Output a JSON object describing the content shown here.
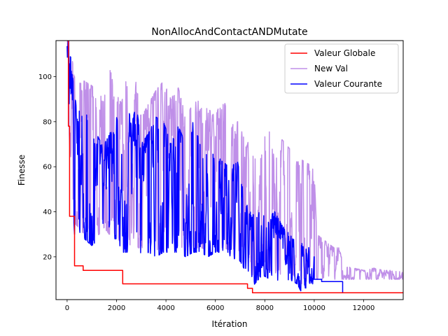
{
  "chart_data": {
    "type": "line",
    "title": "NonAllocAndContactANDMutate",
    "xlabel": "Itération",
    "ylabel": "Finesse",
    "xlim": [
      -450,
      13600
    ],
    "ylim": [
      1,
      116
    ],
    "x_ticks": [
      0,
      2000,
      4000,
      6000,
      8000,
      10000,
      12000
    ],
    "y_ticks": [
      20,
      40,
      60,
      80,
      100
    ],
    "grid": false,
    "legend_position": "top-right",
    "series": [
      {
        "name": "Valeur Globale",
        "color": "#ff0000",
        "style": "step",
        "x": [
          0,
          50,
          50,
          100,
          100,
          300,
          300,
          650,
          650,
          2250,
          2250,
          7300,
          7300,
          7500,
          7500,
          11150,
          11150,
          13600
        ],
        "y": [
          116,
          116,
          78,
          78,
          38,
          38,
          16,
          16,
          14,
          14,
          8,
          8,
          6,
          6,
          4,
          4,
          4,
          4
        ]
      },
      {
        "name": "New Val",
        "color": "#bf8fe8",
        "style": "noisy",
        "x": [
          0,
          100,
          300,
          700,
          1000,
          1300,
          1500,
          1700,
          2000,
          2200,
          2400,
          2600,
          2800,
          3000,
          3300,
          3600,
          3900,
          4200,
          4500,
          4800,
          5100,
          5400,
          5700,
          6000,
          6300,
          6600,
          6900,
          7200,
          7400,
          7600,
          7900,
          8200,
          8400,
          8700,
          9000,
          9300,
          9500,
          9800,
          10000,
          10100,
          10800,
          11000,
          11200,
          11600,
          12000,
          12400,
          12800,
          13200,
          13600
        ],
        "low": [
          100,
          70,
          35,
          30,
          28,
          30,
          33,
          30,
          30,
          25,
          26,
          25,
          24,
          24,
          24,
          23,
          24,
          24,
          24,
          23,
          24,
          24,
          23,
          24,
          24,
          23,
          24,
          16,
          12,
          12,
          16,
          14,
          13,
          12,
          14,
          10,
          8,
          10,
          10,
          10,
          10,
          10,
          10,
          10,
          10,
          10,
          10,
          10,
          10
        ],
        "high": [
          116,
          116,
          100,
          98,
          96,
          92,
          90,
          105,
          92,
          88,
          100,
          92,
          98,
          82,
          88,
          94,
          98,
          90,
          95,
          82,
          88,
          90,
          86,
          82,
          92,
          78,
          80,
          72,
          70,
          66,
          70,
          80,
          68,
          72,
          68,
          62,
          63,
          61,
          58,
          30,
          24,
          24,
          16,
          15,
          14,
          15,
          14,
          14,
          14
        ]
      },
      {
        "name": "Valeur Courante",
        "color": "#0000ff",
        "style": "noisy",
        "x": [
          0,
          100,
          300,
          700,
          1000,
          1300,
          1500,
          1700,
          2000,
          2200,
          2400,
          2600,
          2800,
          3000,
          3300,
          3600,
          3900,
          4200,
          4500,
          4800,
          5100,
          5400,
          5700,
          6000,
          6300,
          6600,
          6900,
          7200,
          7400,
          7600,
          7900,
          8200,
          8400,
          8700,
          9000,
          9300,
          9500,
          9800,
          9990
        ],
        "low": [
          100,
          60,
          30,
          28,
          25,
          28,
          30,
          28,
          28,
          22,
          22,
          22,
          22,
          20,
          22,
          20,
          22,
          22,
          22,
          20,
          22,
          22,
          20,
          22,
          22,
          18,
          20,
          14,
          6,
          8,
          12,
          10,
          10,
          8,
          10,
          8,
          4,
          8,
          8
        ],
        "high": [
          116,
          116,
          90,
          85,
          80,
          72,
          70,
          74,
          82,
          72,
          92,
          78,
          88,
          70,
          75,
          82,
          80,
          70,
          78,
          70,
          80,
          70,
          72,
          66,
          62,
          60,
          62,
          45,
          40,
          38,
          44,
          38,
          40,
          34,
          30,
          26,
          26,
          24,
          20
        ],
        "tail": {
          "x": [
            9990,
            10000,
            10000,
            10300,
            10300,
            11150,
            11150,
            13600
          ],
          "y": [
            20,
            20,
            10,
            10,
            9,
            9,
            4,
            4
          ]
        }
      }
    ]
  }
}
